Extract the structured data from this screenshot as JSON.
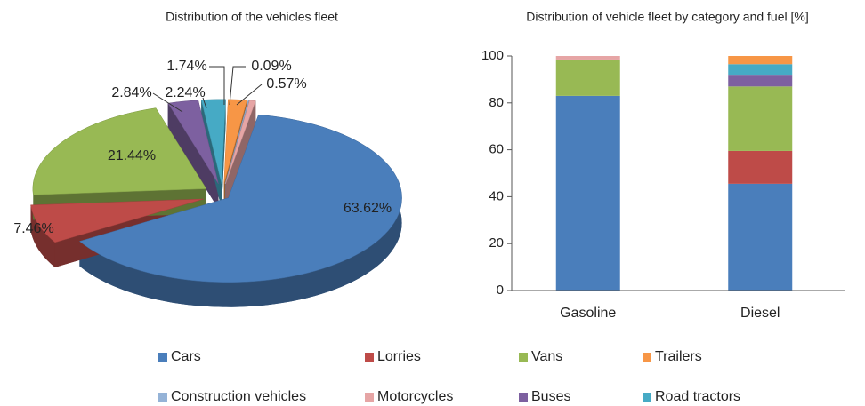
{
  "chart_data": [
    {
      "type": "pie3d",
      "title": "Distribution of the vehicles fleet",
      "values": [
        63.62,
        7.46,
        21.44,
        2.84,
        2.24,
        1.74,
        0.09,
        0.57
      ],
      "value_labels": [
        "63.62%",
        "7.46%",
        "21.44%",
        "2.84%",
        "2.24%",
        "1.74%",
        "0.09%",
        "0.57%"
      ],
      "colors": [
        "#4a7ebb",
        "#be4b48",
        "#98b954",
        "#7d60a0",
        "#46aac5",
        "#f79646",
        "#95b3d7",
        "#e6a5a5"
      ]
    },
    {
      "type": "stacked_bar",
      "title": "Distribution of vehicle fleet by category and fuel [%]",
      "categories": [
        "Gasoline",
        "Diesel"
      ],
      "series": [
        {
          "name": "Cars",
          "color": "#4a7ebb",
          "values": [
            83,
            45.5
          ]
        },
        {
          "name": "Lorries",
          "color": "#be4b48",
          "values": [
            0,
            14
          ]
        },
        {
          "name": "Vans",
          "color": "#98b954",
          "values": [
            15.5,
            27.5
          ]
        },
        {
          "name": "Buses",
          "color": "#7d60a0",
          "values": [
            0,
            5
          ]
        },
        {
          "name": "Road tractors",
          "color": "#46aac5",
          "values": [
            0,
            4.5
          ]
        },
        {
          "name": "Trailers",
          "color": "#f79646",
          "values": [
            0,
            3.5
          ]
        },
        {
          "name": "Construction vehicles",
          "color": "#95b3d7",
          "values": [
            0,
            0
          ]
        },
        {
          "name": "Motorcycles",
          "color": "#e6a5a5",
          "values": [
            1.5,
            0
          ]
        }
      ],
      "ylim": [
        0,
        100
      ],
      "yticks": [
        0,
        20,
        40,
        60,
        80,
        100
      ]
    }
  ]
}
